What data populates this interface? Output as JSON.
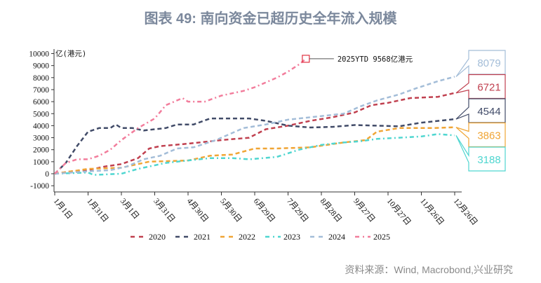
{
  "chart_data": {
    "type": "line",
    "title": "图表 49: 南向资金已超历史全年流入规模",
    "ylabel": "亿(港元)",
    "ylim": [
      -1000,
      10000
    ],
    "yticks": [
      -1000,
      0,
      1000,
      2000,
      3000,
      4000,
      5000,
      6000,
      7000,
      8000,
      9000,
      10000
    ],
    "xlabel": "",
    "x_unit": "days since Jan 1",
    "xlim": [
      0,
      366
    ],
    "xticks": [
      {
        "day": 0,
        "label": "1月1日"
      },
      {
        "day": 30,
        "label": "1月31日"
      },
      {
        "day": 60,
        "label": "3月1日"
      },
      {
        "day": 90,
        "label": "3月31日"
      },
      {
        "day": 120,
        "label": "4月30日"
      },
      {
        "day": 150,
        "label": "5月30日"
      },
      {
        "day": 180,
        "label": "6月29日"
      },
      {
        "day": 210,
        "label": "7月29日"
      },
      {
        "day": 240,
        "label": "8月28日"
      },
      {
        "day": 270,
        "label": "9月27日"
      },
      {
        "day": 300,
        "label": "10月27日"
      },
      {
        "day": 330,
        "label": "11月26日"
      },
      {
        "day": 360,
        "label": "12月26日"
      }
    ],
    "legend_position": "bottom",
    "grid": false,
    "series": [
      {
        "name": "2020",
        "color": "#c0404f",
        "dash": "dash",
        "end_label": "6721",
        "x": [
          0,
          15,
          30,
          45,
          60,
          75,
          85,
          95,
          120,
          150,
          175,
          190,
          210,
          230,
          250,
          270,
          285,
          300,
          320,
          345,
          360
        ],
        "y": [
          0,
          200,
          300,
          600,
          800,
          1300,
          2100,
          2300,
          2500,
          2800,
          3000,
          3700,
          4000,
          4400,
          4700,
          5100,
          5700,
          5900,
          6300,
          6400,
          6721
        ]
      },
      {
        "name": "2021",
        "color": "#414b68",
        "dash": "dash",
        "end_label": "4544",
        "x": [
          0,
          10,
          20,
          30,
          40,
          50,
          55,
          60,
          70,
          80,
          90,
          100,
          110,
          125,
          140,
          160,
          175,
          190,
          210,
          230,
          250,
          270,
          290,
          310,
          330,
          360
        ],
        "y": [
          0,
          900,
          2300,
          3500,
          3800,
          3800,
          4100,
          3800,
          3800,
          3600,
          3700,
          3800,
          4100,
          4100,
          4600,
          4600,
          4600,
          4400,
          4000,
          3850,
          3900,
          4050,
          4000,
          3950,
          4250,
          4544
        ]
      },
      {
        "name": "2022",
        "color": "#f0a535",
        "dash": "dash",
        "end_label": "3863",
        "x": [
          0,
          30,
          60,
          85,
          120,
          140,
          160,
          180,
          200,
          230,
          260,
          280,
          290,
          310,
          340,
          360
        ],
        "y": [
          0,
          400,
          500,
          1000,
          1100,
          1500,
          1600,
          2100,
          2100,
          2200,
          2600,
          2800,
          3500,
          3800,
          3800,
          3863
        ]
      },
      {
        "name": "2023",
        "color": "#4fd6d0",
        "dash": "dashdot",
        "end_label": "3188",
        "x": [
          0,
          30,
          35,
          60,
          75,
          100,
          120,
          140,
          160,
          175,
          200,
          220,
          240,
          260,
          275,
          290,
          310,
          330,
          345,
          360
        ],
        "y": [
          0,
          100,
          -100,
          0,
          400,
          900,
          1100,
          1300,
          1300,
          1200,
          1400,
          2000,
          2400,
          2600,
          2700,
          2900,
          3000,
          3100,
          3300,
          3188
        ]
      },
      {
        "name": "2024",
        "color": "#a3bdd8",
        "dash": "dash",
        "end_label": "8079",
        "x": [
          0,
          30,
          50,
          65,
          80,
          95,
          110,
          125,
          145,
          170,
          190,
          210,
          240,
          260,
          275,
          290,
          310,
          325,
          345,
          360
        ],
        "y": [
          0,
          200,
          300,
          600,
          1200,
          1500,
          2100,
          2200,
          2800,
          3800,
          4100,
          4500,
          4800,
          5000,
          5600,
          6100,
          6600,
          7100,
          7700,
          8079
        ]
      },
      {
        "name": "2025",
        "color": "#f27d9c",
        "dash": "dashdot",
        "end_label": "",
        "x": [
          0,
          10,
          20,
          30,
          40,
          50,
          60,
          75,
          90,
          100,
          110,
          115,
          120,
          135,
          150,
          170,
          180,
          200,
          210,
          220,
          226
        ],
        "y": [
          0,
          900,
          1200,
          1200,
          1500,
          2000,
          2800,
          3800,
          4600,
          5700,
          6100,
          6300,
          6000,
          6000,
          6500,
          6900,
          7200,
          8000,
          8500,
          9100,
          9568
        ]
      }
    ],
    "annotations": [
      {
        "text": "2025YTD 9568亿港元",
        "day": 226,
        "value": 9568
      }
    ],
    "end_label_order": [
      "2024",
      "2020",
      "2021",
      "2022",
      "2023"
    ]
  },
  "source": "资料来源：Wind, Macrobond,兴业研究"
}
